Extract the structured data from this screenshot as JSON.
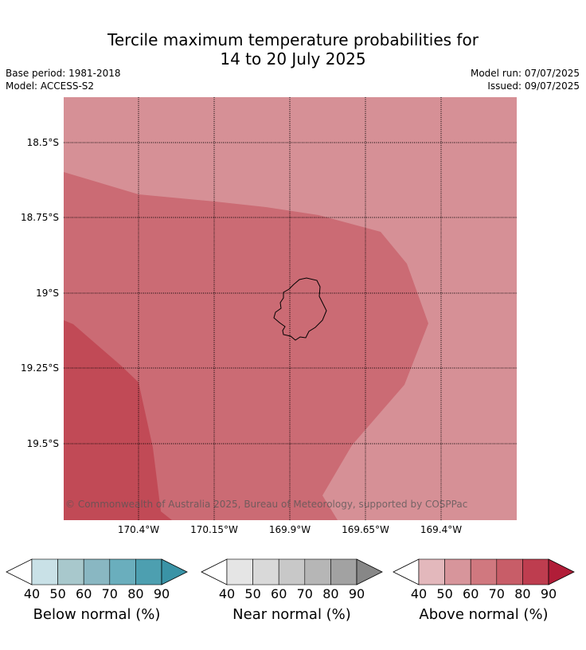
{
  "header": {
    "title_line1": "Tercile maximum temperature probabilities for",
    "title_line2": "14 to 20 July 2025",
    "base_period": "Base period: 1981-2018",
    "model": "Model: ACCESS-S2",
    "model_run": "Model run: 07/07/2025",
    "issued": "Issued: 09/07/2025"
  },
  "map": {
    "lat_labels": [
      "18.5°S",
      "18.75°S",
      "19°S",
      "19.25°S",
      "19.5°S"
    ],
    "lon_labels": [
      "170.4°W",
      "170.15°W",
      "169.9°W",
      "169.65°W",
      "169.4°W"
    ],
    "copyright": "© Commonwealth of Australia 2025, Bureau of Meteorology, supported by COSPPac",
    "zones": [
      {
        "category": "above",
        "band": "50-60",
        "color": "#d69096"
      },
      {
        "category": "above",
        "band": "60-70",
        "color": "#cb6b74"
      },
      {
        "category": "above",
        "band": "70-80",
        "color": "#c14a56"
      }
    ],
    "grid": true
  },
  "legend": {
    "ticks": [
      "40",
      "50",
      "60",
      "70",
      "80",
      "90"
    ],
    "colorbars": [
      {
        "label": "Below normal (%)",
        "colors": [
          "#c9e1e7",
          "#a8c8cc",
          "#89b7c2",
          "#6aaebd",
          "#4d9fb0",
          "#3a93a6"
        ]
      },
      {
        "label": "Near normal (%)",
        "colors": [
          "#e5e5e5",
          "#d9d9d9",
          "#c8c8c8",
          "#b6b6b6",
          "#a2a2a2",
          "#878787"
        ]
      },
      {
        "label": "Above normal (%)",
        "colors": [
          "#e3b8bc",
          "#d7959b",
          "#d0787f",
          "#c85d68",
          "#be3d4f",
          "#b11d38"
        ]
      }
    ]
  }
}
